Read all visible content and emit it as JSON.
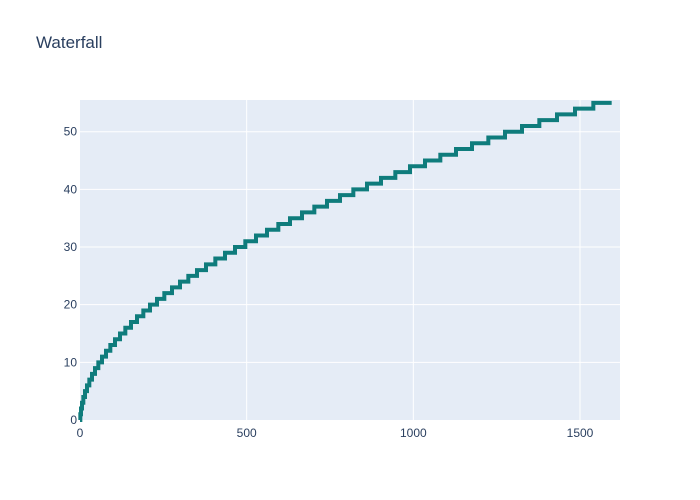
{
  "chart_data": {
    "type": "line",
    "title": "Waterfall",
    "xlabel": "",
    "ylabel": "",
    "xlim": [
      0,
      1620
    ],
    "ylim": [
      0,
      55.5
    ],
    "xticks": [
      0,
      500,
      1000,
      1500
    ],
    "yticks": [
      0,
      10,
      20,
      30,
      40,
      50
    ],
    "grid": true,
    "line_shape": "step",
    "series": [
      {
        "color": "#0f7c7c",
        "x": [
          0,
          1,
          3,
          6,
          10,
          15,
          21,
          28,
          36,
          45,
          55,
          66,
          78,
          91,
          105,
          120,
          136,
          153,
          171,
          190,
          210,
          231,
          253,
          276,
          300,
          325,
          351,
          378,
          406,
          435,
          465,
          496,
          528,
          561,
          595,
          630,
          666,
          703,
          741,
          780,
          820,
          861,
          903,
          946,
          990,
          1035,
          1081,
          1128,
          1176,
          1225,
          1275,
          1326,
          1378,
          1431,
          1485,
          1540
        ],
        "y": [
          0,
          1,
          2,
          3,
          4,
          5,
          6,
          7,
          8,
          9,
          10,
          11,
          12,
          13,
          14,
          15,
          16,
          17,
          18,
          19,
          20,
          21,
          22,
          23,
          24,
          25,
          26,
          27,
          28,
          29,
          30,
          31,
          32,
          33,
          34,
          35,
          36,
          37,
          38,
          39,
          40,
          41,
          42,
          43,
          44,
          45,
          46,
          47,
          48,
          49,
          50,
          51,
          52,
          53,
          54,
          55
        ]
      }
    ]
  },
  "colors": {
    "plot_bg": "#e5ecf6",
    "grid": "#ffffff",
    "line": "#0f7c7c",
    "text": "#2a3f5f"
  }
}
